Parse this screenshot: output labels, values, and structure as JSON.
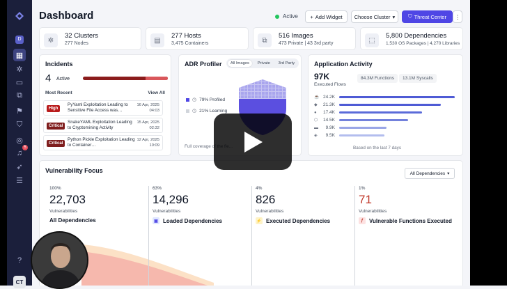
{
  "header": {
    "title": "Dashboard",
    "status": "Active",
    "add_widget": "Add Widget",
    "choose_cluster": "Choose Cluster",
    "threat_center": "Threat Center",
    "more": "⋮"
  },
  "sidebar": {
    "avatar": "CT",
    "workspace_badge": "D",
    "notification_count": "5",
    "icons": [
      "logo-icon",
      "workspace-icon",
      "dashboard-icon",
      "bug-icon",
      "layers-icon",
      "copy-icon",
      "flag-icon",
      "shield-icon",
      "globe-icon",
      "bell-icon",
      "rocket-icon",
      "sliders-icon",
      "help-icon"
    ]
  },
  "stats": [
    {
      "value": "32 Clusters",
      "sub": "277 Nodes",
      "icon": "cluster-icon"
    },
    {
      "value": "277 Hosts",
      "sub": "3,475 Containers",
      "icon": "server-icon"
    },
    {
      "value": "516 Images",
      "sub": "473 Private | 43 3rd party",
      "icon": "images-icon"
    },
    {
      "value": "5,800 Dependencies",
      "sub": "1,530 OS Packages | 4,270 Libraries",
      "icon": "package-icon"
    }
  ],
  "incidents": {
    "title": "Incidents",
    "count": "4",
    "count_label": "Active",
    "most_recent": "Most Recent",
    "view_all": "View All",
    "items": [
      {
        "severity": "High",
        "text": "PyYaml Exploitation Leading to Sensitive File Access was…",
        "date": "16 Apr, 2025",
        "time": "04:03"
      },
      {
        "severity": "Critical",
        "text": "SnakeYAML Exploitation Leading to Cryptomining Activity",
        "date": "15 Apr, 2025",
        "time": "02:32"
      },
      {
        "severity": "Critical",
        "text": "Python Pickle Exploitation Leading to Container…",
        "date": "12 Apr, 2025",
        "time": "10:09"
      }
    ]
  },
  "adr": {
    "title": "ADR Profiler",
    "tabs": [
      "All Images",
      "Private",
      "3rd Party"
    ],
    "profiled": "79% Profiled",
    "learning": "21% Learning",
    "coverage": "Full coverage of the fle..."
  },
  "activity": {
    "title": "Application Activity",
    "flows_value": "97K",
    "flows_label": "Executed Flows",
    "functions": "84.3M Functions",
    "syscalls": "13.1M Syscalls",
    "rows": [
      {
        "label": "24.2K",
        "value": 24.2,
        "color": "#4f5bd5",
        "icon": "java-icon"
      },
      {
        "label": "21.3K",
        "value": 21.3,
        "color": "#4f5bd5",
        "icon": "python-icon"
      },
      {
        "label": "17.4K",
        "value": 17.4,
        "color": "#5b6bd9",
        "icon": "go-icon"
      },
      {
        "label": "14.5K",
        "value": 14.5,
        "color": "#7381dc",
        "icon": "node-icon"
      },
      {
        "label": "9.9K",
        "value": 9.9,
        "color": "#9aa6e6",
        "icon": "dotnet-icon"
      },
      {
        "label": "9.5K",
        "value": 9.5,
        "color": "#b3bdee",
        "icon": "ruby-icon"
      }
    ],
    "footer": "Based on the last 7 days"
  },
  "vuln": {
    "title": "Vulnerability Focus",
    "filter": "All Dependencies",
    "columns": [
      {
        "pct": "100%",
        "value": "22,703",
        "label": "Vulnerabilities",
        "name": "All Dependencies",
        "color": "#111827",
        "icon": ""
      },
      {
        "pct": "63%",
        "value": "14,296",
        "label": "Vulnerabilities",
        "name": "Loaded Dependencies",
        "color": "#111827",
        "icon": "▣"
      },
      {
        "pct": "4%",
        "value": "826",
        "label": "Vulnerabilities",
        "name": "Executed Dependencies",
        "color": "#111827",
        "icon": "⚡"
      },
      {
        "pct": "1%",
        "value": "71",
        "label": "Vulnerabilities",
        "name": "Vulnerable Functions Executed",
        "color": "#c0392b",
        "icon": "ƒ"
      }
    ]
  }
}
